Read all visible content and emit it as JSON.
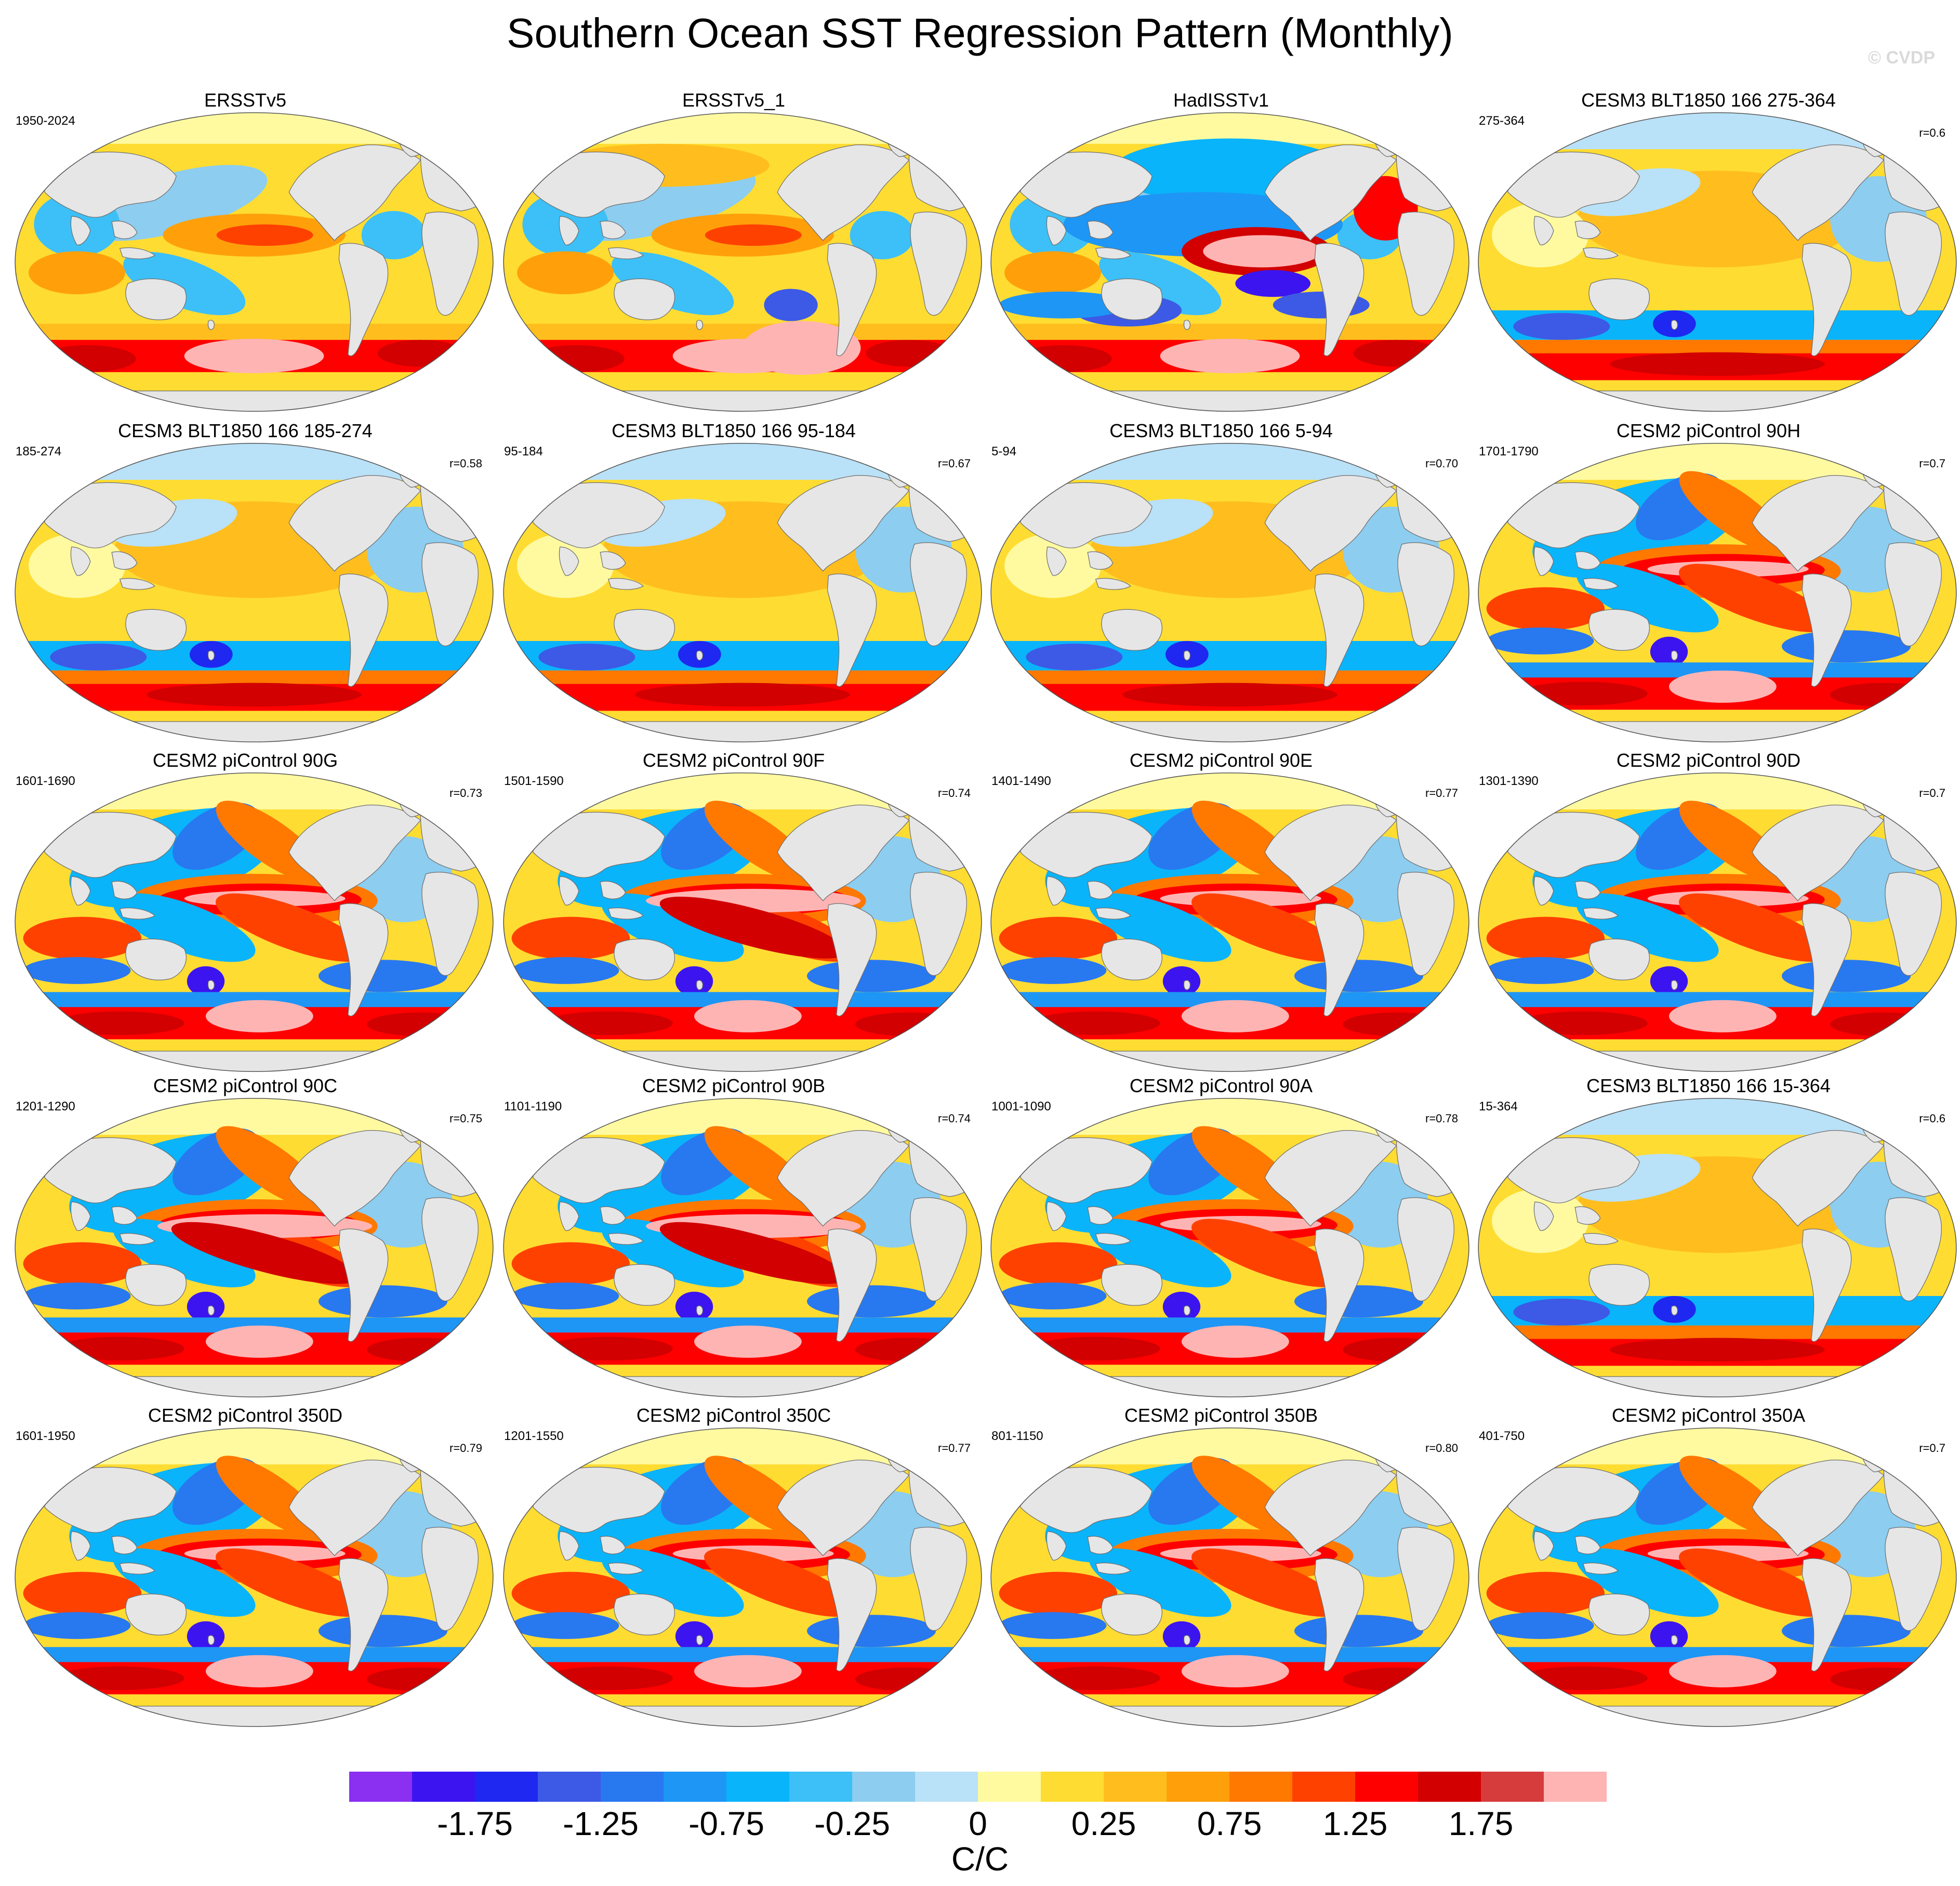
{
  "title": "Southern Ocean SST Regression Pattern (Monthly)",
  "watermark": "© CVDP",
  "colorbar": {
    "units": "C/C",
    "colors": [
      "#8b2ff0",
      "#3c14f0",
      "#1e28f0",
      "#3c5ae6",
      "#2878f0",
      "#1e96f5",
      "#0ab4fa",
      "#3cc0f7",
      "#8ccdf0",
      "#b9e1f7",
      "#fffaa0",
      "#ffdc32",
      "#ffbe1e",
      "#ffa00a",
      "#ff7800",
      "#ff4100",
      "#ff0000",
      "#d20000",
      "#d73c3c",
      "#ffb4b4"
    ],
    "labels": [
      "-1.75",
      "-1.25",
      "-0.75",
      "-0.25",
      "0",
      "0.25",
      "0.75",
      "1.25",
      "1.75"
    ]
  },
  "map_colors": {
    "ocean": "#ffdc32",
    "land": "#e6e6e6",
    "coast": "#6e6e6e"
  },
  "panels": [
    {
      "title": "ERSSTv5",
      "years": "1950-2024",
      "corr": "",
      "pattern": "obs1"
    },
    {
      "title": "ERSSTv5_1",
      "years": "",
      "corr": "",
      "pattern": "obs2"
    },
    {
      "title": "HadISSTv1",
      "years": "",
      "corr": "",
      "pattern": "obs3"
    },
    {
      "title": "CESM3 BLT1850 166 275-364",
      "years": "275-364",
      "corr": "r=0.6",
      "pattern": "weak"
    },
    {
      "title": "CESM3 BLT1850 166 185-274",
      "years": "185-274",
      "corr": "r=0.58",
      "pattern": "weak"
    },
    {
      "title": "CESM3 BLT1850 166 95-184",
      "years": "95-184",
      "corr": "r=0.67",
      "pattern": "weak"
    },
    {
      "title": "CESM3 BLT1850 166 5-94",
      "years": "5-94",
      "corr": "r=0.70",
      "pattern": "weak"
    },
    {
      "title": "CESM2 piControl 90H",
      "years": "1701-1790",
      "corr": "r=0.7",
      "pattern": "enso"
    },
    {
      "title": "CESM2 piControl 90G",
      "years": "1601-1690",
      "corr": "r=0.73",
      "pattern": "enso"
    },
    {
      "title": "CESM2 piControl 90F",
      "years": "1501-1590",
      "corr": "r=0.74",
      "pattern": "strong"
    },
    {
      "title": "CESM2 piControl 90E",
      "years": "1401-1490",
      "corr": "r=0.77",
      "pattern": "enso"
    },
    {
      "title": "CESM2 piControl 90D",
      "years": "1301-1390",
      "corr": "r=0.7",
      "pattern": "enso"
    },
    {
      "title": "CESM2 piControl 90C",
      "years": "1201-1290",
      "corr": "r=0.75",
      "pattern": "strong"
    },
    {
      "title": "CESM2 piControl 90B",
      "years": "1101-1190",
      "corr": "r=0.74",
      "pattern": "strong"
    },
    {
      "title": "CESM2 piControl 90A",
      "years": "1001-1090",
      "corr": "r=0.78",
      "pattern": "enso"
    },
    {
      "title": "CESM3 BLT1850 166 15-364",
      "years": "15-364",
      "corr": "r=0.6",
      "pattern": "weak"
    },
    {
      "title": "CESM2 piControl 350D",
      "years": "1601-1950",
      "corr": "r=0.79",
      "pattern": "enso"
    },
    {
      "title": "CESM2 piControl 350C",
      "years": "1201-1550",
      "corr": "r=0.77",
      "pattern": "enso"
    },
    {
      "title": "CESM2 piControl 350B",
      "years": "801-1150",
      "corr": "r=0.80",
      "pattern": "enso"
    },
    {
      "title": "CESM2 piControl 350A",
      "years": "401-750",
      "corr": "r=0.7",
      "pattern": "enso"
    }
  ]
}
